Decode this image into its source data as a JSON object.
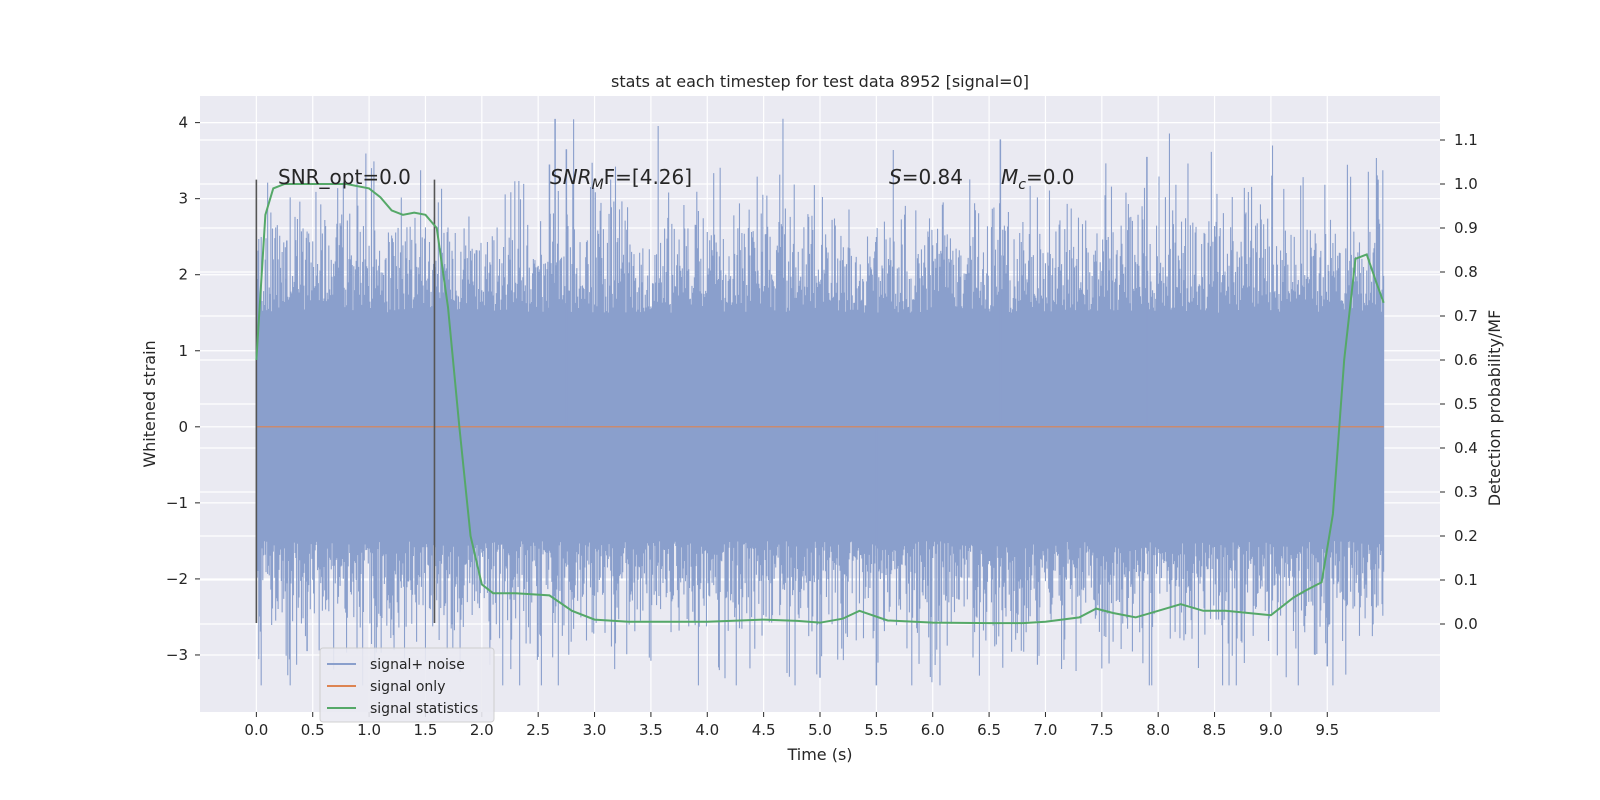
{
  "chart_data": {
    "type": "line",
    "title": "stats at each timestep for test data 8952 [signal=0]",
    "xlabel": "Time (s)",
    "ylabel": "Whitened strain",
    "ylabel_right": "Detection probability/MF",
    "xlim": [
      -0.5,
      10.5
    ],
    "ylim": [
      -3.75,
      4.35
    ],
    "ylim_right": [
      -0.2,
      1.2
    ],
    "xticks": [
      "0.0",
      "0.5",
      "1.0",
      "1.5",
      "2.0",
      "2.5",
      "3.0",
      "3.5",
      "4.0",
      "4.5",
      "5.0",
      "5.5",
      "6.0",
      "6.5",
      "7.0",
      "7.5",
      "8.0",
      "8.5",
      "9.0",
      "9.5"
    ],
    "yticks": [
      "4",
      "3",
      "2",
      "1",
      "0",
      "−1",
      "−2",
      "−3"
    ],
    "yticks_right": [
      "1.1",
      "1.0",
      "0.9",
      "0.8",
      "0.7",
      "0.6",
      "0.5",
      "0.4",
      "0.3",
      "0.2",
      "0.1",
      "0.0"
    ],
    "grid": true,
    "legend_position": "bottom-left",
    "annotations": {
      "snr_opt": "SNR_opt=0.0",
      "snr_mf_main": "SNR",
      "snr_mf_sub": "M",
      "snr_mf_rest": "F=[4.26]",
      "s_var": "S",
      "s_val": "=0.84",
      "mc_main": "M",
      "mc_sub": "c",
      "mc_val": "=0.0"
    },
    "vertical_markers": [
      0.0,
      1.58
    ],
    "series": [
      {
        "name": "signal+ noise",
        "color": "#8a9fcc",
        "x_range": [
          0.0,
          10.0
        ],
        "typical_range": [
          -1.5,
          1.5
        ],
        "max": 4.05,
        "min": -3.4
      },
      {
        "name": "signal only",
        "color": "#dd8452",
        "x": [
          0.0,
          10.0
        ],
        "y": [
          0.0,
          0.0
        ]
      },
      {
        "name": "signal statistics",
        "color": "#55a868",
        "axis": "right",
        "x": [
          0.0,
          0.08,
          0.15,
          0.25,
          0.5,
          0.8,
          1.0,
          1.1,
          1.2,
          1.3,
          1.4,
          1.5,
          1.6,
          1.7,
          1.8,
          1.9,
          2.0,
          2.1,
          2.3,
          2.6,
          2.8,
          3.0,
          3.3,
          3.6,
          4.0,
          4.5,
          4.8,
          5.0,
          5.2,
          5.35,
          5.6,
          6.0,
          6.5,
          6.8,
          7.0,
          7.3,
          7.45,
          7.6,
          7.8,
          8.0,
          8.2,
          8.4,
          8.6,
          8.8,
          9.0,
          9.2,
          9.3,
          9.45,
          9.55,
          9.65,
          9.75,
          9.85,
          9.93,
          10.0
        ],
        "y": [
          0.6,
          0.93,
          0.99,
          1.0,
          1.0,
          1.0,
          0.99,
          0.97,
          0.94,
          0.93,
          0.935,
          0.93,
          0.9,
          0.72,
          0.45,
          0.2,
          0.09,
          0.07,
          0.07,
          0.065,
          0.03,
          0.01,
          0.005,
          0.005,
          0.005,
          0.01,
          0.007,
          0.003,
          0.012,
          0.03,
          0.008,
          0.003,
          0.002,
          0.002,
          0.005,
          0.015,
          0.035,
          0.025,
          0.015,
          0.03,
          0.045,
          0.03,
          0.03,
          0.025,
          0.02,
          0.06,
          0.075,
          0.095,
          0.25,
          0.6,
          0.83,
          0.84,
          0.78,
          0.73
        ]
      }
    ]
  }
}
